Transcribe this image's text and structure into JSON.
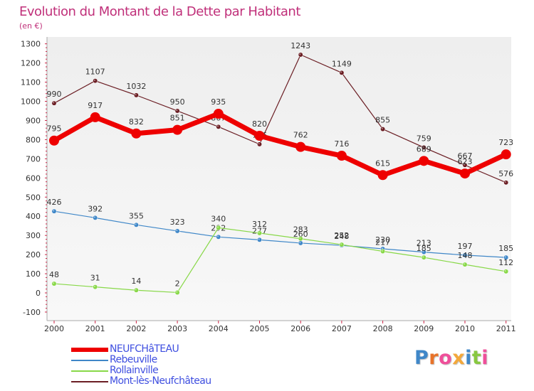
{
  "chart_data": {
    "type": "line",
    "title": "Evolution du Montant de la Dette par Habitant",
    "subtitle": "(en €)",
    "x": [
      "2000",
      "2001",
      "2002",
      "2003",
      "2004",
      "2005",
      "2006",
      "2007",
      "2008",
      "2009",
      "2010",
      "2011"
    ],
    "ylim": [
      -100,
      1300
    ],
    "yticks": [
      -100,
      0,
      100,
      200,
      300,
      400,
      500,
      600,
      700,
      800,
      900,
      1000,
      1100,
      1200,
      1300
    ],
    "grid": false,
    "legend_position": "bottom-left",
    "series": [
      {
        "name": "NEUFCHâTEAU",
        "color": "#ee0000",
        "values": [
          795,
          917,
          832,
          851,
          935,
          820,
          762,
          716,
          615,
          689,
          623,
          723
        ]
      },
      {
        "name": "Rebeuville",
        "color": "#3f87c8",
        "values": [
          426,
          392,
          355,
          323,
          292,
          277,
          260,
          248,
          230,
          213,
          197,
          185
        ]
      },
      {
        "name": "Rollainville",
        "color": "#88d848",
        "values": [
          48,
          31,
          14,
          2,
          340,
          312,
          283,
          252,
          217,
          185,
          148,
          112
        ]
      },
      {
        "name": "Mont-lès-Neufchâteau",
        "color": "#6b1e24",
        "values": [
          990,
          1107,
          1032,
          950,
          867,
          776,
          1243,
          1149,
          855,
          759,
          667,
          576
        ]
      }
    ]
  },
  "logo": {
    "text": "Proxiti",
    "colors": [
      "#3f87c8",
      "#e8732a",
      "#ef4f9a",
      "#f3a83b",
      "#3f87c8",
      "#88c840",
      "#ef4f9a"
    ]
  }
}
